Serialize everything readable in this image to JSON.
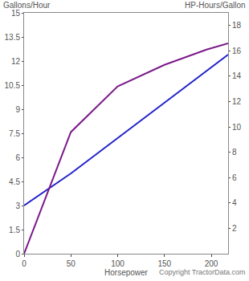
{
  "chart_data": {
    "type": "line",
    "xlabel": "Horsepower",
    "ylabel": "Gallons/Hour",
    "y2label": "HP-Hours/Gallon",
    "annotations": [
      "Copyright TractorData.com"
    ],
    "xlim": [
      0,
      218
    ],
    "xticks": [
      0,
      50,
      100,
      150,
      200
    ],
    "ylim": [
      0,
      15
    ],
    "yticks": [
      0,
      1.5,
      3,
      4.5,
      6,
      7.5,
      9,
      10.5,
      12,
      13.5,
      15
    ],
    "y2lim": [
      0,
      19
    ],
    "y2ticks": [
      2,
      4,
      6,
      8,
      10,
      12,
      14,
      16,
      18
    ],
    "grid": false,
    "series": [
      {
        "color": "#2222cc",
        "x": [
          0,
          50,
          218
        ],
        "values": [
          3,
          5,
          12.4
        ]
      },
      {
        "color": "#7b1a8a",
        "axis": "y2",
        "x": [
          0,
          50,
          100,
          150,
          195,
          218
        ],
        "values": [
          0,
          9.6,
          13.2,
          14.9,
          16.1,
          16.6
        ]
      }
    ]
  }
}
